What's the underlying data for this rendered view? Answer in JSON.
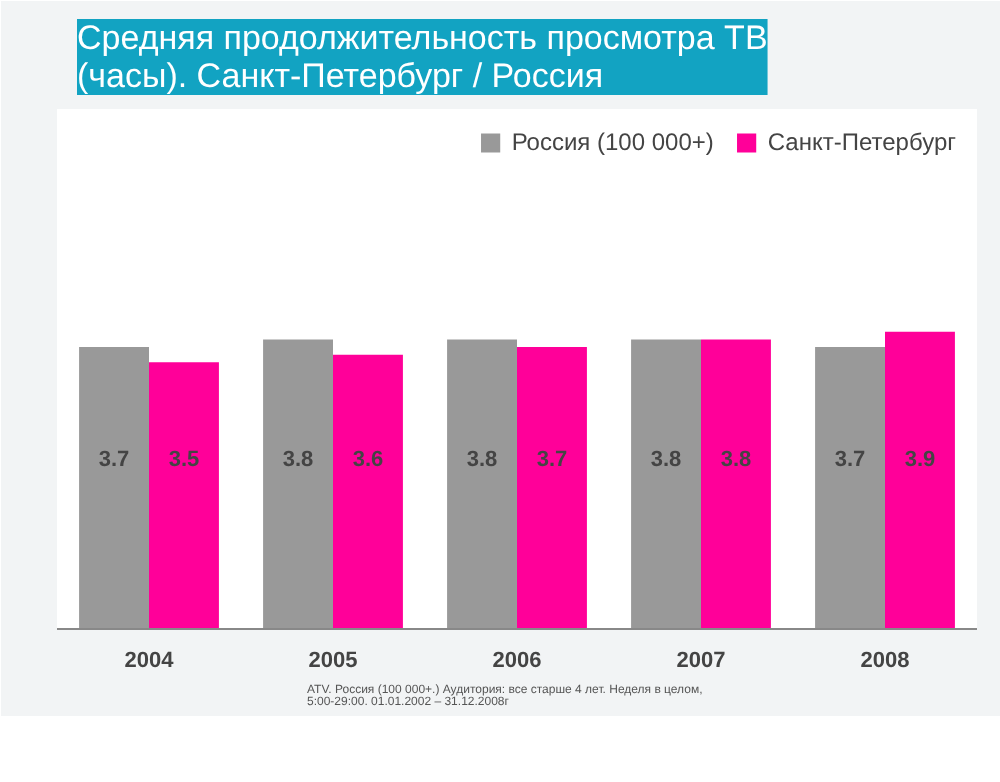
{
  "chart_data": {
    "type": "bar",
    "title": "Средняя продолжительность просмотра ТВ\n(часы). Санкт-Петербург / Россия",
    "categories": [
      "2004",
      "2005",
      "2006",
      "2007",
      "2008"
    ],
    "series": [
      {
        "name": "Россия (100 000+)",
        "color": "#999999",
        "values": [
          3.7,
          3.8,
          3.8,
          3.8,
          3.7
        ]
      },
      {
        "name": "Санкт-Петербург",
        "color": "#ff0099",
        "values": [
          3.5,
          3.6,
          3.7,
          3.8,
          3.9
        ]
      }
    ],
    "data_labels": true,
    "legend": "top right",
    "grid": false,
    "annotations": [
      "ATV. Россия (100 000+.) Аудитория: все старше 4 лет. Неделя в целом,\n5:00-29:00. 01.01.2002 – 31.12.2008г"
    ]
  }
}
